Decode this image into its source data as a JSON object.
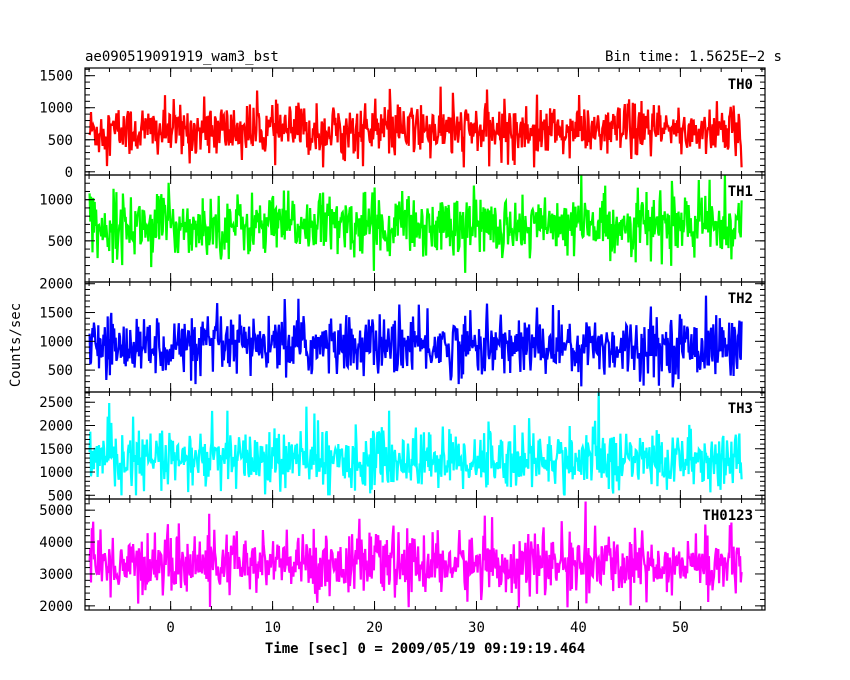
{
  "chart_data": {
    "type": "line",
    "title_left": "ae090519091919_wam3_bst",
    "title_right": "Bin time: 1.5625E−2 s",
    "xlabel": "Time [sec] 0 = 2009/05/19 09:19:19.464",
    "ylabel": "Counts/sec",
    "xlim": [
      -8.4,
      58.3
    ],
    "x_range_data": [
      -7.95,
      56.0
    ],
    "x_ticks": [
      0,
      10,
      20,
      30,
      40,
      50
    ],
    "x_tick_labels": [
      "0",
      "10",
      "20",
      "30",
      "40",
      "50"
    ],
    "x_minor_step": 2,
    "panels": [
      {
        "name": "TH0",
        "color": "#ff0000",
        "ylim": [
          -50,
          1620
        ],
        "y_ticks": [
          0,
          500,
          1000,
          1500
        ],
        "y_tick_labels": [
          "0",
          "500",
          "1000",
          "1500"
        ],
        "y_minor_step": 100,
        "mean": 640,
        "spread": 210,
        "min_clip": 70,
        "max_clip": 1750
      },
      {
        "name": "TH1",
        "color": "#00ff00",
        "ylim": [
          0,
          1300
        ],
        "y_ticks": [
          500,
          1000
        ],
        "y_tick_labels": [
          "500",
          "1000"
        ],
        "y_minor_step": 100,
        "mean": 690,
        "spread": 185,
        "min_clip": 110,
        "max_clip": 1500
      },
      {
        "name": "TH2",
        "color": "#0000ff",
        "ylim": [
          120,
          2030
        ],
        "y_ticks": [
          500,
          1000,
          1500,
          2000
        ],
        "y_tick_labels": [
          "500",
          "1000",
          "1500",
          "2000"
        ],
        "y_minor_step": 100,
        "mean": 920,
        "spread": 260,
        "min_clip": 200,
        "max_clip": 2100
      },
      {
        "name": "TH3",
        "color": "#00ffff",
        "ylim": [
          420,
          2720
        ],
        "y_ticks": [
          500,
          1000,
          1500,
          2000,
          2500
        ],
        "y_tick_labels": [
          "500",
          "1000",
          "1500",
          "2000",
          "2500"
        ],
        "y_minor_step": 100,
        "mean": 1260,
        "spread": 320,
        "min_clip": 500,
        "max_clip": 2900
      },
      {
        "name": "TH0123",
        "color": "#ff00ff",
        "ylim": [
          1870,
          5350
        ],
        "y_ticks": [
          2000,
          3000,
          4000,
          5000
        ],
        "y_tick_labels": [
          "2000",
          "3000",
          "4000",
          "5000"
        ],
        "y_minor_step": 200,
        "mean": 3300,
        "spread": 480,
        "min_clip": 1950,
        "max_clip": 5600
      }
    ]
  }
}
